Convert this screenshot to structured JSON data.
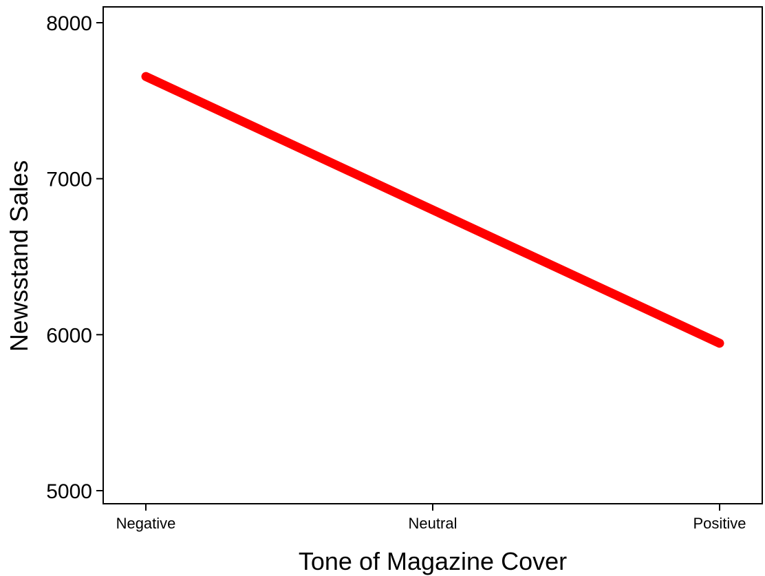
{
  "chart_data": {
    "type": "line",
    "title": "",
    "xlabel": "Tone of Magazine Cover",
    "ylabel": "Newsstand Sales",
    "categories": [
      "Negative",
      "Neutral",
      "Positive"
    ],
    "series": [
      {
        "values": [
          7655,
          6800,
          5945
        ],
        "color": "#ff0000"
      }
    ],
    "ylim": [
      4900,
      8100
    ],
    "yticks": [
      5000,
      6000,
      7000,
      8000
    ],
    "grid": false,
    "legend": "none"
  }
}
